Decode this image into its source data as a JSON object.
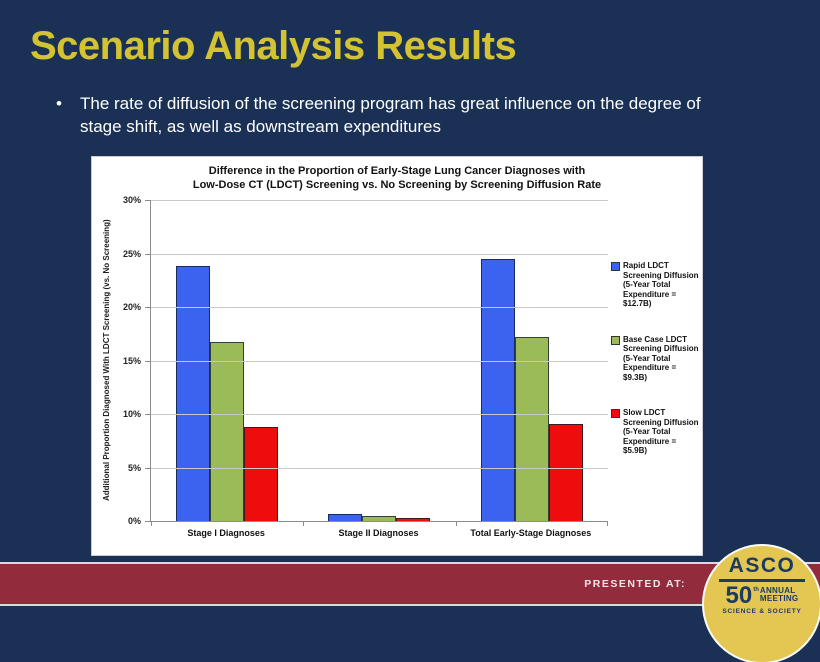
{
  "slide": {
    "title": "Scenario Analysis Results",
    "bullet": "The rate of diffusion of the screening program has great influence on the degree of stage shift, as well as downstream expenditures",
    "footer": {
      "presented_at": "PRESENTED AT:",
      "logo": {
        "org": "ASCO",
        "number": "50",
        "number_suffix": "th",
        "line1": "ANNUAL",
        "line2": "MEETING",
        "tagline": "SCIENCE & SOCIETY"
      }
    },
    "colors": {
      "background": "#1A3155",
      "title_yellow": "#D3C232",
      "band_red": "#922B3C",
      "logo_gold": "#E3C752",
      "logo_navy": "#1C3B63"
    }
  },
  "chart_data": {
    "type": "bar",
    "title": "Difference in the Proportion of Early-Stage Lung Cancer Diagnoses with Low-Dose CT (LDCT) Screening vs. No Screening by Screening Diffusion Rate",
    "title_lines": [
      "Difference in the Proportion of Early-Stage Lung Cancer Diagnoses with",
      "Low-Dose CT (LDCT) Screening vs. No Screening by Screening Diffusion Rate"
    ],
    "xlabel": "",
    "ylabel": "Additional Proportion Diagnosed With LDCT Screening (vs. No Screening)",
    "ylim": [
      0,
      30
    ],
    "ytick_step": 5,
    "ytick_suffix": "%",
    "grid": true,
    "legend_position": "right",
    "categories": [
      "Stage I Diagnoses",
      "Stage II Diagnoses",
      "Total Early-Stage Diagnoses"
    ],
    "series": [
      {
        "name": "Rapid LDCT Screening Diffusion (5-Year Total Expenditure = $12.7B)",
        "color": "#3C63F0",
        "values": [
          23.8,
          0.7,
          24.5
        ]
      },
      {
        "name": "Base Case LDCT Screening Diffusion (5-Year Total Expenditure = $9.3B)",
        "color": "#9BBB59",
        "values": [
          16.7,
          0.5,
          17.2
        ]
      },
      {
        "name": "Slow LDCT Screening Diffusion (5-Year Total Expenditure = $5.9B)",
        "color": "#EE0D0D",
        "values": [
          8.8,
          0.3,
          9.1
        ]
      }
    ]
  }
}
